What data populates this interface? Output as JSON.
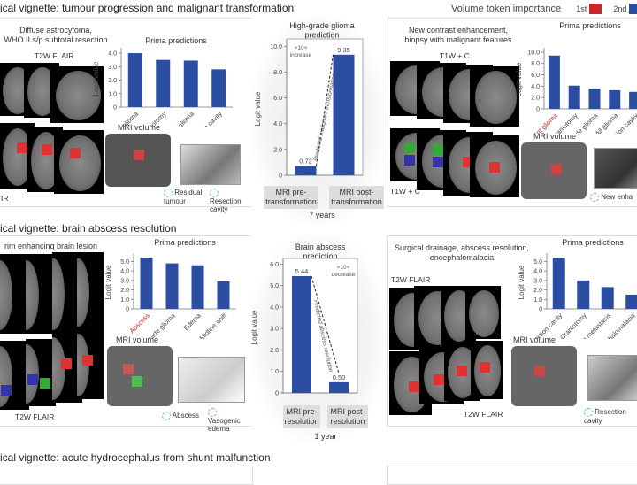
{
  "header": {
    "legend_title": "Volume token importance",
    "first": "1st",
    "second": "2nd",
    "first_color": "#c8262b",
    "second_color": "#2b4ea2"
  },
  "vignette1": {
    "title": "ical vignette: tumour progression and malignant transformation",
    "left": {
      "caption": "Diffuse astrocytoma,\nWHO II s/p subtotal resection",
      "seq_top": "T2W FLAIR",
      "seq_bottom": "IR",
      "volume": "MRI volume",
      "legend_a": "Residual tumour",
      "legend_b": "Resection cavity"
    },
    "center": {
      "title": "High-grade glioma prediction",
      "annotation": "×10× increase",
      "arrow_label": "Predicted malignant transformation",
      "pre": "MRI pre-transformation",
      "post": "MRI post-transformation",
      "interval": "7 years"
    },
    "right": {
      "caption": "New contrast enhancement,\nbiopsy with malignant features",
      "seq_top": "T1W + C",
      "seq_bottom": "T1W + C",
      "volume": "MRI volume",
      "legend_a": "New enha"
    }
  },
  "vignette2": {
    "title": "ical vignette: brain abscess resolution",
    "left": {
      "caption": "rim enhancing brain lesion",
      "seq_bottom": "T2W FLAIR",
      "volume": "MRI volume",
      "legend_a": "Abscess",
      "legend_b": "Vasogenic edema"
    },
    "center": {
      "title": "Brain abscess prediction",
      "annotation": "×10× decrease",
      "arrow_label": "Predicted abscess resolution",
      "pre": "MRI pre-resolution",
      "post": "MRI post-resolution",
      "interval": "1 year"
    },
    "right": {
      "caption": "Surgical drainage, abscess resolution,\nencephalomalacia",
      "seq_top": "T2W FLAIR",
      "seq_bottom": "T2W FLAIR",
      "volume": "MRI volume",
      "legend_a": "Resection cavity"
    }
  },
  "vignette3": {
    "title": "ical vignette: acute hydrocephalus from shunt malfunction"
  },
  "chart_data": [
    {
      "id": "c1",
      "type": "bar",
      "title": "Prima predictions",
      "ylabel": "Logit value",
      "ylim": [
        0,
        4.2
      ],
      "ticks": [
        "0",
        "1.0",
        "2.0",
        "3.0",
        "4.0"
      ],
      "tickvals": [
        0,
        1,
        2,
        3,
        4
      ],
      "categories": [
        "Low-grade glioma",
        "Craniotomy",
        "All glioma",
        "Resection cavity"
      ],
      "values": [
        4.0,
        3.5,
        3.45,
        2.8
      ],
      "highlight": [],
      "bar_color": "#2b4ea2"
    },
    {
      "id": "c2",
      "type": "bar",
      "title": "High-grade glioma prediction",
      "ylabel": "Logit value",
      "ylim": [
        0,
        10.3
      ],
      "ticks": [
        "0",
        "2.0",
        "4.0",
        "6.0",
        "8.0",
        "10.0"
      ],
      "tickvals": [
        0,
        2,
        4,
        6,
        8,
        10
      ],
      "categories": [
        "MRI pre-transformation",
        "MRI post-transformation"
      ],
      "values": [
        0.72,
        9.35
      ],
      "data_labels": [
        "0.72",
        "9.35"
      ],
      "bar_color": "#2b4ea2"
    },
    {
      "id": "c3",
      "type": "bar",
      "title": "Prima predictions",
      "ylabel": "Logit value",
      "ylim": [
        0,
        10.3
      ],
      "ticks": [
        "0",
        "2.0",
        "4.0",
        "6.0",
        "8.0",
        "10.0"
      ],
      "tickvals": [
        0,
        2,
        4,
        6,
        8,
        10
      ],
      "categories": [
        "Malignant glioma",
        "Craniotomy",
        "Low-grade glioma",
        "All glioma",
        "Resection cavity"
      ],
      "values": [
        9.4,
        4.1,
        3.6,
        3.3,
        3.0
      ],
      "highlight": [
        0
      ],
      "bar_color": "#2b4ea2"
    },
    {
      "id": "c4",
      "type": "bar",
      "title": "Prima predictions",
      "ylabel": "Logit value",
      "ylim": [
        0,
        5.6
      ],
      "ticks": [
        "0",
        "1.0",
        "2.0",
        "3.0",
        "4.0",
        "5.0"
      ],
      "tickvals": [
        0,
        1,
        2,
        3,
        4,
        5
      ],
      "categories": [
        "Abscess",
        "High-grade glioma",
        "Edema",
        "Midline shift"
      ],
      "values": [
        5.4,
        4.8,
        4.6,
        2.9
      ],
      "highlight": [
        0
      ],
      "bar_color": "#2b4ea2"
    },
    {
      "id": "c5",
      "type": "bar",
      "title": "Brain abscess prediction",
      "ylabel": "Logit value",
      "ylim": [
        0,
        6.1
      ],
      "ticks": [
        "0",
        "1.0",
        "2.0",
        "3.0",
        "4.0",
        "5.0",
        "6.0"
      ],
      "tickvals": [
        0,
        1,
        2,
        3,
        4,
        5,
        6
      ],
      "categories": [
        "MRI pre-resolution",
        "MRI post-resolution"
      ],
      "values": [
        5.44,
        0.5
      ],
      "data_labels": [
        "5.44",
        "0.50"
      ],
      "bar_color": "#2b4ea2"
    },
    {
      "id": "c6",
      "type": "bar",
      "title": "Prima predictions",
      "ylabel": "Logit value",
      "ylim": [
        0,
        5.6
      ],
      "ticks": [
        "0",
        "1.0",
        "2.0",
        "3.0",
        "4.0",
        "5.0"
      ],
      "tickvals": [
        0,
        1,
        2,
        3,
        4,
        5
      ],
      "categories": [
        "Resection cavity",
        "Craniotomy",
        "Brain metastasis",
        "Encephalomalacia"
      ],
      "values": [
        5.4,
        3.0,
        2.3,
        1.5
      ],
      "highlight": [],
      "bar_color": "#2b4ea2"
    }
  ]
}
